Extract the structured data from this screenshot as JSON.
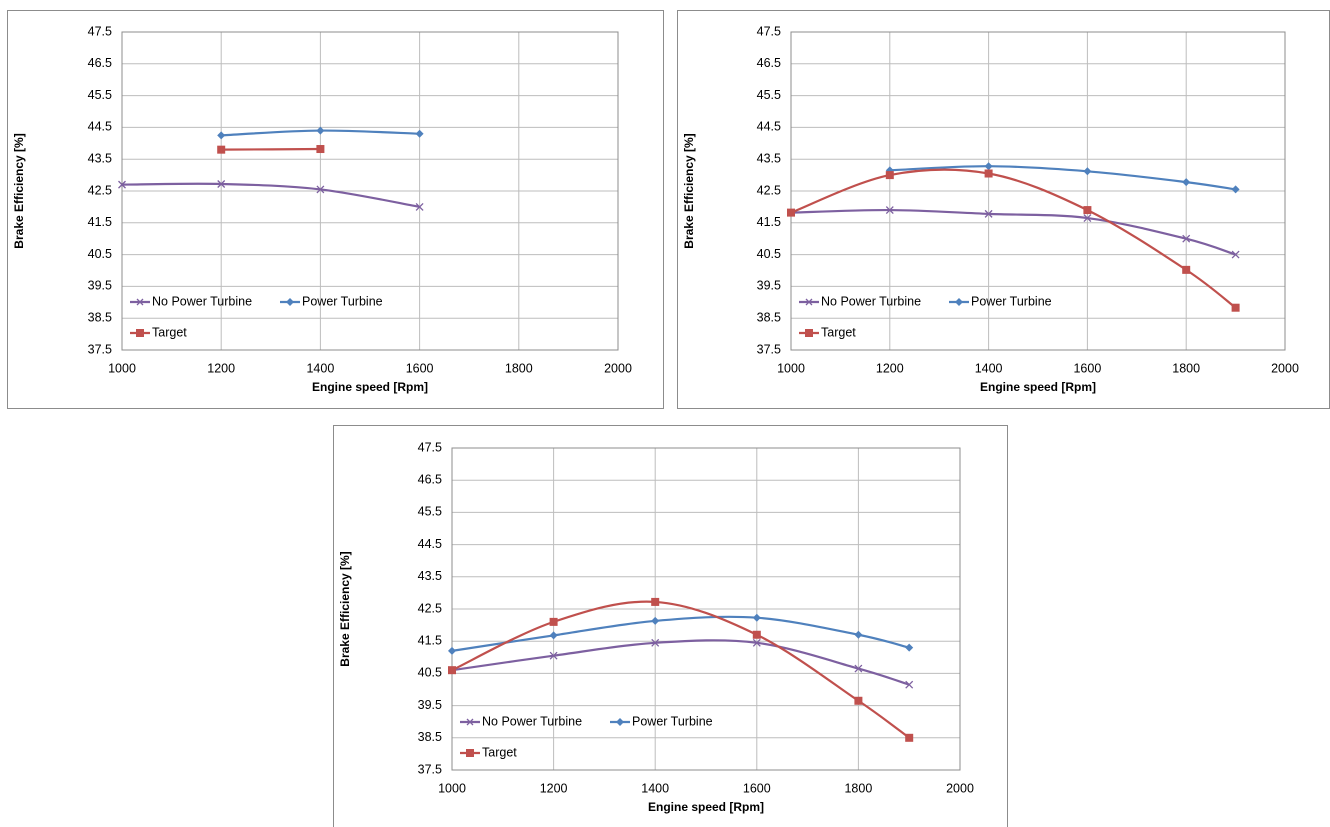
{
  "chart_data": [
    {
      "type": "line",
      "x_label": "Engine speed [Rpm]",
      "y_label": "Brake Efficiency [%]",
      "x": [
        1000,
        1200,
        1400,
        1600
      ],
      "series": [
        {
          "name": "No Power Turbine",
          "color": "#7d60a0",
          "marker": "x",
          "values": [
            42.7,
            42.72,
            42.55,
            42.0
          ]
        },
        {
          "name": "Power Turbine",
          "color": "#4f81bd",
          "marker": "diamond",
          "values": [
            null,
            44.25,
            44.4,
            44.3
          ]
        },
        {
          "name": "Target",
          "color": "#c0504d",
          "marker": "square",
          "values": [
            null,
            43.8,
            43.82,
            null
          ]
        }
      ],
      "xlim": [
        1000,
        2000
      ],
      "xticks": [
        1000,
        1200,
        1400,
        1600,
        1800,
        2000
      ],
      "ylim": [
        37.5,
        47.5
      ],
      "yticks": [
        37.5,
        38.5,
        39.5,
        40.5,
        41.5,
        42.5,
        43.5,
        44.5,
        45.5,
        46.5,
        47.5
      ],
      "grid": true,
      "smooth": true,
      "legend": "lower-left"
    },
    {
      "type": "line",
      "x_label": "Engine speed [Rpm]",
      "y_label": "Brake Efficiency [%]",
      "x": [
        1000,
        1200,
        1400,
        1600,
        1800,
        1900
      ],
      "series": [
        {
          "name": "No Power Turbine",
          "color": "#7d60a0",
          "marker": "x",
          "values": [
            41.82,
            41.9,
            41.78,
            41.65,
            41.0,
            40.5
          ]
        },
        {
          "name": "Power Turbine",
          "color": "#4f81bd",
          "marker": "diamond",
          "values": [
            null,
            43.15,
            43.28,
            43.12,
            42.78,
            42.55
          ]
        },
        {
          "name": "Target",
          "color": "#c0504d",
          "marker": "square",
          "values": [
            41.82,
            43.0,
            43.05,
            41.9,
            40.02,
            38.83
          ]
        }
      ],
      "xlim": [
        1000,
        2000
      ],
      "xticks": [
        1000,
        1200,
        1400,
        1600,
        1800,
        2000
      ],
      "ylim": [
        37.5,
        47.5
      ],
      "yticks": [
        37.5,
        38.5,
        39.5,
        40.5,
        41.5,
        42.5,
        43.5,
        44.5,
        45.5,
        46.5,
        47.5
      ],
      "grid": true,
      "smooth": true,
      "legend": "lower-left"
    },
    {
      "type": "line",
      "x_label": "Engine speed [Rpm]",
      "y_label": "Brake Efficiency [%]",
      "x": [
        1000,
        1200,
        1400,
        1600,
        1800,
        1900
      ],
      "series": [
        {
          "name": "No Power Turbine",
          "color": "#7d60a0",
          "marker": "x",
          "values": [
            40.6,
            41.05,
            41.45,
            41.45,
            40.65,
            40.15
          ]
        },
        {
          "name": "Power Turbine",
          "color": "#4f81bd",
          "marker": "diamond",
          "values": [
            41.2,
            41.68,
            42.13,
            42.23,
            41.7,
            41.3
          ]
        },
        {
          "name": "Target",
          "color": "#c0504d",
          "marker": "square",
          "values": [
            40.6,
            42.1,
            42.72,
            41.7,
            39.65,
            38.5
          ]
        }
      ],
      "xlim": [
        1000,
        2000
      ],
      "xticks": [
        1000,
        1200,
        1400,
        1600,
        1800,
        2000
      ],
      "ylim": [
        37.5,
        47.5
      ],
      "yticks": [
        37.5,
        38.5,
        39.5,
        40.5,
        41.5,
        42.5,
        43.5,
        44.5,
        45.5,
        46.5,
        47.5
      ],
      "grid": true,
      "smooth": true,
      "legend": "lower-left"
    }
  ]
}
